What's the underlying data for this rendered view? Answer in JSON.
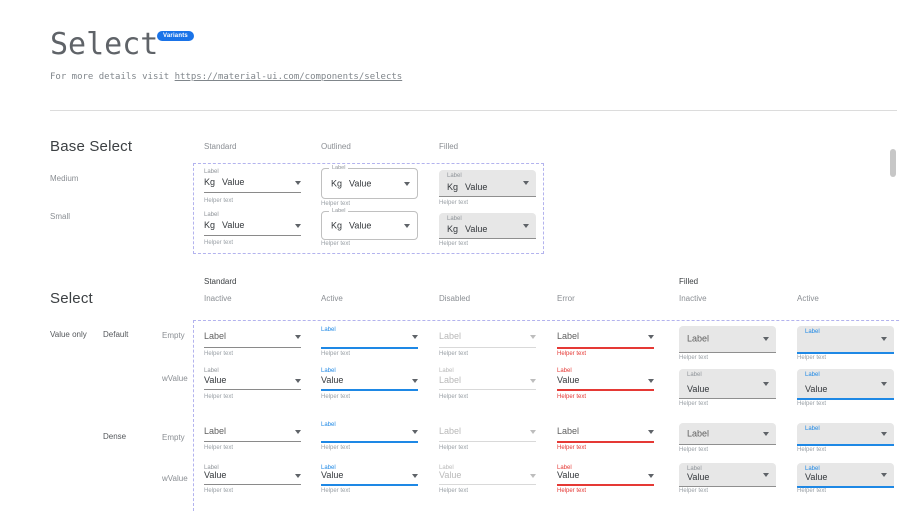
{
  "header": {
    "title": "Select",
    "badge": "Variants",
    "link_prefix": "For more details visit ",
    "link_url": "https://material-ui.com/components/selects"
  },
  "colors": {
    "accent": "#1a73e8",
    "focus": "#1e88e5",
    "error": "#e53935",
    "filled_bg": "#e7e7e7",
    "dashed_border": "#b3b3ee",
    "underline": "#8a8a8a"
  },
  "base_select": {
    "heading": "Base Select",
    "columns": [
      "Standard",
      "Outlined",
      "Filled"
    ],
    "rows": [
      "Medium",
      "Small"
    ],
    "component": {
      "label": "Label",
      "adornment": "Kg",
      "value": "Value",
      "helper": "Helper text"
    }
  },
  "select": {
    "heading": "Select",
    "groups": [
      {
        "label": "Standard"
      },
      {
        "label": "Filled"
      }
    ],
    "state_headers": [
      "Inactive",
      "Active",
      "Disabled",
      "Error",
      "Inactive",
      "Active"
    ],
    "row_header": "Value only",
    "rows": [
      {
        "size": "Default",
        "variant": "Empty",
        "cells": [
          {
            "type": "standard",
            "state": "inactive",
            "float": null,
            "main": "Label",
            "helper": "Helper text"
          },
          {
            "type": "standard",
            "state": "active",
            "float": "Label",
            "main": "",
            "helper": "Helper text"
          },
          {
            "type": "standard",
            "state": "disabled",
            "float": null,
            "main": "Label",
            "helper": "Helper text"
          },
          {
            "type": "standard",
            "state": "error",
            "float": null,
            "main": "Label",
            "helper": "Helper text"
          },
          {
            "type": "filled",
            "state": "inactive",
            "float": null,
            "main": "Label",
            "helper": "Helper text"
          },
          {
            "type": "filled",
            "state": "active",
            "float": "Label",
            "main": "",
            "helper": "Helper text"
          }
        ]
      },
      {
        "size": "Default",
        "variant": "wValue",
        "cells": [
          {
            "type": "standard",
            "state": "inactive",
            "float": "Label",
            "main": "Value",
            "helper": "Helper text"
          },
          {
            "type": "standard",
            "state": "active",
            "float": "Label",
            "main": "Value",
            "helper": "Helper text"
          },
          {
            "type": "standard",
            "state": "disabled",
            "float": "Label",
            "main": "Label",
            "helper": "Helper text"
          },
          {
            "type": "standard",
            "state": "error",
            "float": "Label",
            "main": "Value",
            "helper": "Helper text"
          },
          {
            "type": "filled",
            "state": "inactive",
            "float": "Label",
            "main": "Value",
            "helper": "Helper text"
          },
          {
            "type": "filled",
            "state": "active",
            "float": "Label",
            "main": "Value",
            "helper": "Helper text"
          }
        ]
      },
      {
        "size": "Dense",
        "variant": "Empty",
        "cells": [
          {
            "type": "standard",
            "state": "inactive",
            "float": null,
            "main": "Label",
            "helper": "Helper text"
          },
          {
            "type": "standard",
            "state": "active",
            "float": "Label",
            "main": "",
            "helper": "Helper text"
          },
          {
            "type": "standard",
            "state": "disabled",
            "float": null,
            "main": "Label",
            "helper": "Helper text"
          },
          {
            "type": "standard",
            "state": "error",
            "float": null,
            "main": "Label",
            "helper": "Helper text"
          },
          {
            "type": "filled",
            "state": "inactive",
            "float": null,
            "main": "Label",
            "helper": "Helper text"
          },
          {
            "type": "filled",
            "state": "active",
            "float": "Label",
            "main": "",
            "helper": "Helper text"
          }
        ]
      },
      {
        "size": "Dense",
        "variant": "wValue",
        "cells": [
          {
            "type": "standard",
            "state": "inactive",
            "float": "Label",
            "main": "Value",
            "helper": "Helper text"
          },
          {
            "type": "standard",
            "state": "active",
            "float": "Label",
            "main": "Value",
            "helper": "Helper text"
          },
          {
            "type": "standard",
            "state": "disabled",
            "float": "Label",
            "main": "Value",
            "helper": "Helper text"
          },
          {
            "type": "standard",
            "state": "error",
            "float": "Label",
            "main": "Value",
            "helper": "Helper text"
          },
          {
            "type": "filled",
            "state": "inactive",
            "float": "Label",
            "main": "Value",
            "helper": "Helper text"
          },
          {
            "type": "filled",
            "state": "active",
            "float": "Label",
            "main": "Value",
            "helper": "Helper text"
          }
        ]
      }
    ]
  }
}
